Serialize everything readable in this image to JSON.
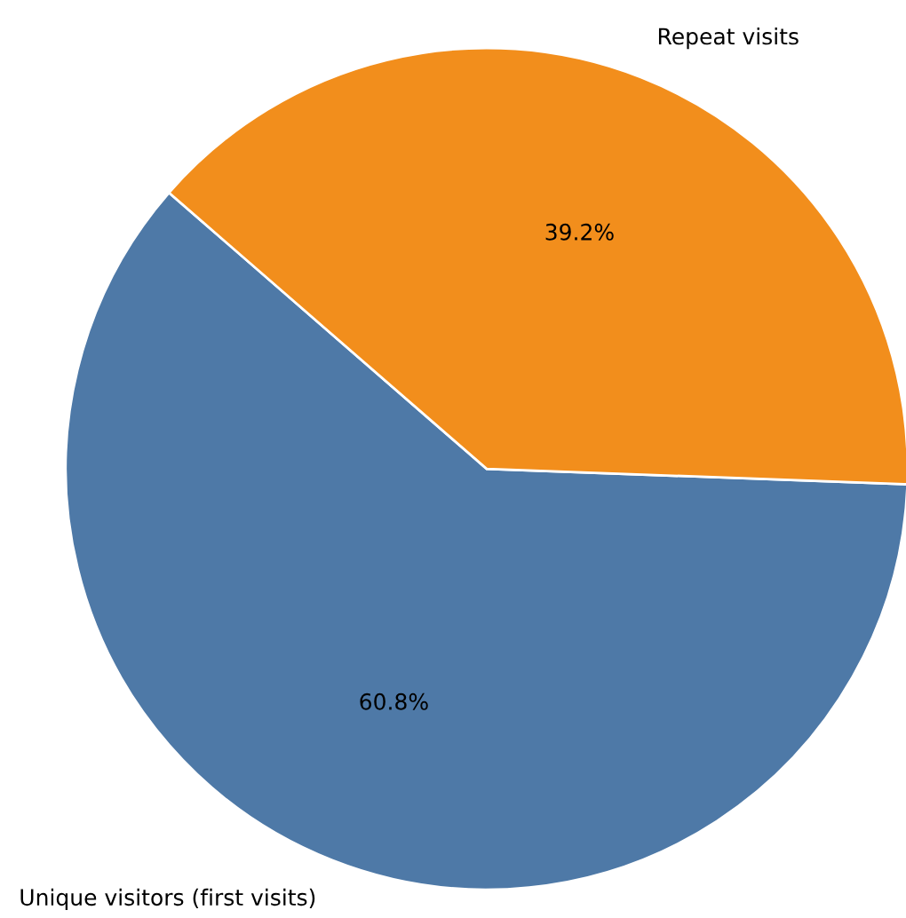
{
  "chart_data": {
    "type": "pie",
    "categories": [
      "Unique visitors (first visits)",
      "Repeat visits"
    ],
    "values": [
      60.8,
      39.2
    ],
    "value_labels": [
      "60.8%",
      "39.2%"
    ],
    "colors": [
      "#4e79a7",
      "#f28e1c"
    ],
    "legend": false
  }
}
